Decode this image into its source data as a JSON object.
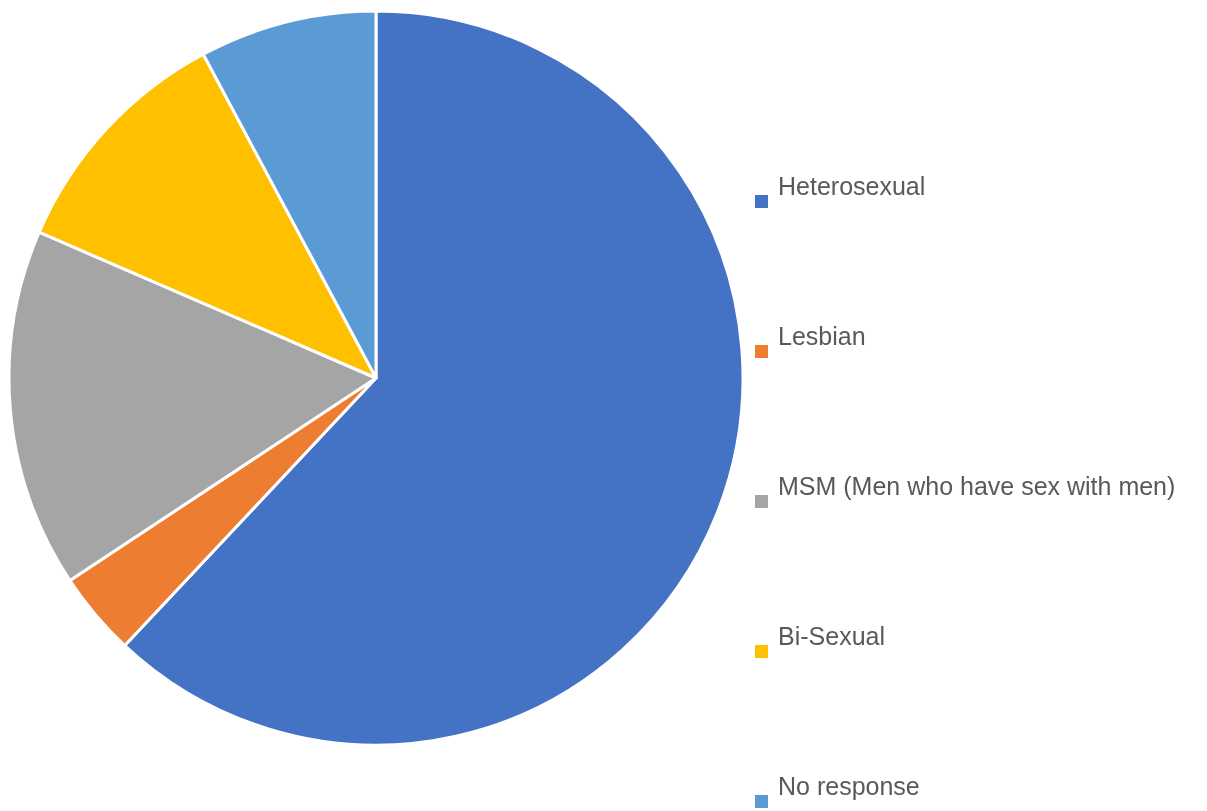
{
  "chart_data": {
    "type": "pie",
    "categories": [
      "Heterosexual",
      "Lesbian",
      "MSM (Men who have sex with men)",
      "Bi-Sexual",
      "No response"
    ],
    "values": [
      62.0,
      3.7,
      15.8,
      10.7,
      7.8
    ],
    "colors": [
      "#4472c4",
      "#ed7d31",
      "#a5a5a5",
      "#ffc000",
      "#5b9bd5"
    ],
    "legend": "right"
  }
}
